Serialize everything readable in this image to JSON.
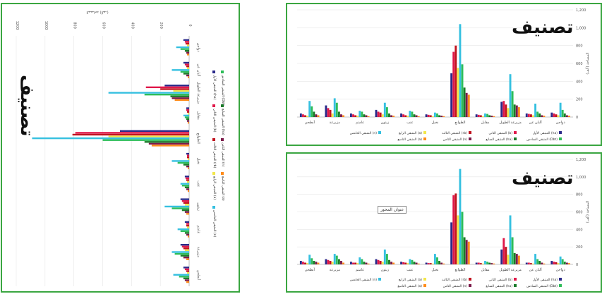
{
  "titles": {
    "main": "تصنيف"
  },
  "tooltip": "عنوان المحور",
  "colors": [
    "#2b2a8a",
    "#e0184a",
    "#c1121f",
    "#f2e64a",
    "#35c0e0",
    "#2ebd59",
    "#1a7a2a",
    "#7b1a4a",
    "#ff8c1a"
  ],
  "chart_data": [
    {
      "id": "top-right",
      "type": "bar",
      "orientation": "vertical",
      "ylim": [
        0,
        1200
      ],
      "yticks": [
        0,
        200,
        400,
        600,
        800,
        "1,000",
        "1,200"
      ],
      "ylabel": "المساحة (ألف)",
      "categories": [
        "أبطحي",
        "مزيرعة",
        "غامتم",
        "زيتون",
        "عنب",
        "نخيل",
        "الطوابع",
        "مقابل",
        "مزيرعة الطويل",
        "ألبان عن",
        "دواجن"
      ],
      "series": [
        {
          "name": "المتبقي الأول (ha)",
          "values": [
            40,
            130,
            40,
            80,
            40,
            30,
            490,
            30,
            170,
            40,
            50
          ]
        },
        {
          "name": "المتبقي الثاني (b)",
          "values": [
            30,
            100,
            30,
            60,
            30,
            25,
            730,
            25,
            180,
            35,
            40
          ]
        },
        {
          "name": "المتبقي الثالث (rb)",
          "values": [
            20,
            80,
            20,
            50,
            20,
            20,
            800,
            20,
            140,
            30,
            30
          ]
        },
        {
          "name": "المتبقي الرابع (a)",
          "values": [
            15,
            40,
            15,
            30,
            15,
            10,
            550,
            10,
            100,
            20,
            20
          ]
        },
        {
          "name": "المتبقي الخامس (n)",
          "values": [
            180,
            210,
            70,
            160,
            70,
            50,
            1040,
            40,
            480,
            150,
            160
          ]
        },
        {
          "name": "المتبقي السادس (Dbt)",
          "values": [
            120,
            160,
            60,
            110,
            60,
            40,
            590,
            35,
            290,
            60,
            80
          ]
        },
        {
          "name": "المتبقي السابع (ha)",
          "values": [
            60,
            60,
            30,
            40,
            30,
            20,
            330,
            20,
            140,
            40,
            40
          ]
        },
        {
          "name": "المتبقي الثامن (n)",
          "values": [
            30,
            30,
            20,
            20,
            20,
            15,
            270,
            15,
            130,
            20,
            20
          ]
        },
        {
          "name": "المتبقي التاسع (a)",
          "values": [
            20,
            20,
            10,
            15,
            10,
            10,
            250,
            10,
            110,
            15,
            15
          ]
        }
      ],
      "legend": [
        "المتبقي الأول (ha)",
        "المتبقي الثاني (b)",
        "المتبقي الثالث (rb)",
        "المتبقي الرابع (a)",
        "المتبقي الخامس (n)",
        "المتبقي السادس (Dbt)",
        "المتبقي السابع (ha)",
        "المتبقي الثامن (n)",
        "المتبقي التاسع (a)"
      ]
    },
    {
      "id": "bottom-right",
      "type": "bar",
      "orientation": "vertical",
      "ylim": [
        0,
        1200
      ],
      "yticks": [
        0,
        200,
        400,
        600,
        800,
        "1,000",
        "1,200"
      ],
      "ylabel": "المساحة (ألف)",
      "categories": [
        "أبطحي",
        "مزيرعة",
        "غامتم",
        "زيتون",
        "عنب",
        "نخيل",
        "الطوابع",
        "مقابل",
        "مزيرعة الطويل",
        "ألبان عن",
        "دواجن"
      ],
      "series": [
        {
          "name": "المتبقي الأول (ha)",
          "values": [
            40,
            60,
            30,
            60,
            30,
            20,
            480,
            20,
            170,
            20,
            40
          ]
        },
        {
          "name": "المتبقي الثاني (b)",
          "values": [
            30,
            50,
            20,
            50,
            25,
            15,
            790,
            20,
            300,
            20,
            30
          ]
        },
        {
          "name": "المتبقي الثالث (rb)",
          "values": [
            20,
            40,
            20,
            40,
            20,
            15,
            810,
            15,
            200,
            15,
            25
          ]
        },
        {
          "name": "المتبقي الرابع (a)",
          "values": [
            15,
            30,
            15,
            30,
            15,
            10,
            560,
            10,
            110,
            10,
            15
          ]
        },
        {
          "name": "المتبقي الخامس (n)",
          "values": [
            110,
            120,
            80,
            170,
            60,
            120,
            1090,
            40,
            560,
            120,
            90
          ]
        },
        {
          "name": "المتبقي السادس (Dbt)",
          "values": [
            70,
            100,
            60,
            120,
            50,
            80,
            600,
            30,
            310,
            60,
            60
          ]
        },
        {
          "name": "المتبقي السابع (ha)",
          "values": [
            40,
            60,
            30,
            50,
            30,
            40,
            310,
            20,
            130,
            40,
            30
          ]
        },
        {
          "name": "المتبقي الثامن (n)",
          "values": [
            30,
            40,
            20,
            30,
            20,
            20,
            280,
            15,
            120,
            20,
            20
          ]
        },
        {
          "name": "المتبقي التاسع (a)",
          "values": [
            20,
            20,
            10,
            20,
            10,
            10,
            260,
            10,
            100,
            10,
            15
          ]
        }
      ],
      "legend": [
        "المتبقي الأول (ha)",
        "المتبقي الثاني (b)",
        "المتبقي الثالث (rb)",
        "المتبقي الرابع (a)",
        "المتبقي الخامس (n)",
        "المتبقي السادس (Dbt)",
        "المتبقي السابع (ha)",
        "المتبقي الثامن (n)",
        "المتبقي التاسع (a)"
      ]
    },
    {
      "id": "left",
      "type": "bar",
      "orientation": "horizontal-rotated",
      "ylim": [
        0,
        1200
      ],
      "yticks": [
        0,
        200,
        400,
        600,
        800,
        1000,
        1200
      ],
      "ylabel": "المساحة (ألف)",
      "categories": [
        "دواجن",
        "ألبان عن",
        "مزيرعة الطويل",
        "مقابل",
        "الطوابع",
        "نخيل",
        "عنب",
        "زيتون",
        "غامتم",
        "مزيرعة",
        "أبطحي"
      ],
      "series": [
        {
          "name": "المتبقي الأول (ha)",
          "values": [
            40,
            40,
            170,
            20,
            480,
            20,
            30,
            60,
            30,
            60,
            40
          ]
        },
        {
          "name": "المتبقي الثاني (b)",
          "values": [
            30,
            30,
            300,
            20,
            790,
            15,
            25,
            50,
            20,
            50,
            30
          ]
        },
        {
          "name": "المتبقي الثالث (rb)",
          "values": [
            25,
            20,
            200,
            15,
            810,
            15,
            20,
            40,
            20,
            40,
            20
          ]
        },
        {
          "name": "المتبقي الرابع (a)",
          "values": [
            15,
            15,
            110,
            10,
            560,
            10,
            15,
            30,
            15,
            30,
            15
          ]
        },
        {
          "name": "المتبقي الخامس (n)",
          "values": [
            90,
            120,
            560,
            40,
            1090,
            120,
            60,
            170,
            80,
            120,
            110
          ]
        },
        {
          "name": "المتبقي السادس (Dbt)",
          "values": [
            60,
            60,
            310,
            30,
            600,
            80,
            50,
            120,
            60,
            100,
            70
          ]
        },
        {
          "name": "المتبقي السابع (ha)",
          "values": [
            30,
            40,
            130,
            20,
            310,
            40,
            30,
            50,
            30,
            60,
            40
          ]
        },
        {
          "name": "المتبقي الثامن (n)",
          "values": [
            20,
            20,
            120,
            15,
            280,
            20,
            20,
            30,
            20,
            40,
            30
          ]
        },
        {
          "name": "المتبقي التاسع (a)",
          "values": [
            15,
            10,
            100,
            10,
            260,
            10,
            10,
            20,
            10,
            20,
            20
          ]
        }
      ],
      "legend": [
        "المتبقي الأول (ha)",
        "المتبقي الثاني (b)",
        "المتبقي الثالث (rb)",
        "المتبقي الرابع (a)",
        "المتبقي الخامس (n)",
        "المتبقي السادس (Dbt)",
        "المتبقي السابع (ha)",
        "المتبقي الثامن (n)",
        "المتبقي التاسع (a)"
      ]
    }
  ]
}
